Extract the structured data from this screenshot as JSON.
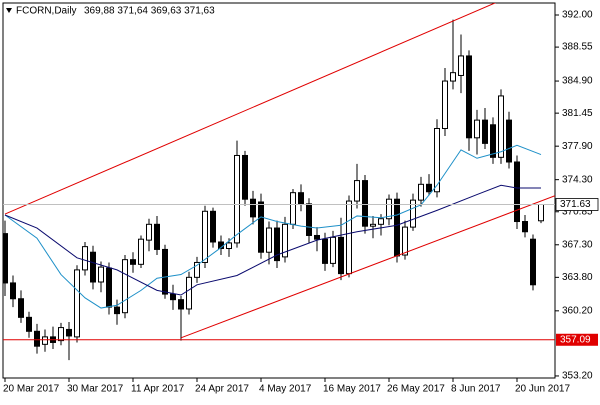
{
  "chart_data": {
    "type": "candlestick",
    "title": "FCORN,Daily",
    "subtitle": "369,88 371,64 369,63 371,63",
    "categories": [
      "20 Mar 2017",
      null,
      null,
      null,
      null,
      null,
      null,
      null,
      "30 Mar 2017",
      null,
      null,
      null,
      null,
      null,
      null,
      null,
      "11 Apr 2017",
      null,
      null,
      null,
      null,
      null,
      null,
      null,
      "24 Apr 2017",
      null,
      null,
      null,
      null,
      null,
      null,
      null,
      "4 May 2017",
      null,
      null,
      null,
      null,
      null,
      null,
      null,
      "16 May 2017",
      null,
      null,
      null,
      null,
      null,
      null,
      null,
      "26 May 2017",
      null,
      null,
      null,
      null,
      null,
      null,
      null,
      "8 Jun 2017",
      null,
      null,
      null,
      null,
      null,
      null,
      null,
      "20 Jun 2017",
      null,
      null,
      null
    ],
    "open": [
      368.5,
      363.2,
      361.5,
      359.5,
      358.0,
      356.6,
      357.4,
      357.0,
      358.2,
      357.4,
      364.6,
      366.5,
      363.3,
      364.8,
      360.6,
      360.0,
      365.7,
      365.2,
      367.8,
      369.5,
      366.8,
      362.0,
      361.4,
      360.4,
      363.8,
      365.4,
      370.9,
      367.6,
      366.9,
      367.5,
      376.9,
      372.2,
      371.9,
      366.5,
      369.1,
      366.0,
      369.5,
      372.9,
      371.7,
      368.3,
      367.9,
      365.3,
      368.1,
      364.2,
      372.0,
      374.2,
      369.3,
      369.5,
      370.1,
      372.2,
      366.2,
      369.2,
      372.1,
      373.8,
      373.0,
      379.8,
      384.9,
      385.5,
      387.6,
      378.8,
      380.7,
      380.2,
      376.7,
      380.7,
      376.2,
      369.8,
      367.9,
      369.88
    ],
    "high": [
      369.9,
      364.0,
      362.4,
      360.1,
      358.8,
      358.2,
      358.5,
      358.9,
      359.0,
      365.1,
      367.6,
      367.2,
      365.5,
      365.4,
      361.4,
      366.2,
      366.5,
      368.3,
      370.1,
      370.4,
      367.3,
      363.0,
      361.8,
      364.4,
      366.0,
      371.5,
      371.3,
      368.3,
      368.0,
      378.5,
      377.4,
      373.1,
      372.8,
      369.8,
      369.9,
      370.3,
      373.3,
      373.8,
      372.3,
      369.2,
      368.6,
      368.8,
      370.2,
      372.6,
      376.0,
      374.8,
      370.4,
      370.6,
      372.7,
      372.9,
      369.9,
      372.8,
      374.6,
      374.9,
      380.8,
      386.3,
      391.5,
      389.9,
      388.2,
      381.8,
      382.0,
      381.0,
      384.0,
      381.6,
      376.9,
      370.5,
      368.4,
      371.64
    ],
    "low": [
      361.8,
      360.6,
      358.9,
      357.3,
      355.6,
      355.8,
      356.1,
      356.5,
      354.9,
      356.8,
      364.0,
      362.5,
      362.2,
      359.8,
      358.7,
      359.4,
      364.3,
      364.8,
      366.6,
      366.2,
      361.5,
      360.3,
      357.0,
      359.8,
      363.2,
      364.8,
      367.0,
      366.2,
      366.0,
      367.0,
      371.5,
      369.5,
      365.8,
      365.2,
      364.8,
      365.4,
      369.0,
      370.9,
      367.5,
      366.6,
      364.5,
      364.9,
      363.5,
      363.8,
      371.2,
      368.5,
      368.0,
      368.3,
      369.4,
      365.4,
      365.7,
      368.8,
      371.4,
      372.6,
      372.4,
      379.0,
      384.0,
      383.6,
      377.4,
      377.0,
      377.6,
      376.0,
      376.0,
      375.5,
      369.0,
      368.1,
      362.4,
      369.63
    ],
    "close": [
      363.2,
      361.5,
      359.5,
      358.0,
      356.4,
      357.4,
      356.8,
      358.4,
      357.5,
      364.6,
      367.1,
      363.3,
      364.9,
      360.6,
      359.9,
      365.7,
      365.2,
      367.9,
      369.5,
      366.8,
      362.0,
      361.4,
      360.4,
      363.8,
      365.4,
      370.9,
      367.6,
      366.9,
      367.5,
      376.9,
      372.2,
      370.3,
      366.5,
      369.1,
      365.6,
      369.5,
      372.9,
      371.7,
      368.3,
      367.9,
      365.3,
      368.1,
      364.2,
      372.0,
      374.2,
      369.3,
      369.5,
      370.1,
      372.2,
      366.1,
      369.2,
      372.1,
      373.8,
      373.0,
      379.8,
      384.9,
      385.8,
      387.6,
      378.8,
      380.7,
      378.2,
      376.7,
      383.3,
      376.2,
      369.8,
      368.7,
      363.0,
      371.63
    ],
    "up_color": "#ffffff",
    "down_color": "#000000",
    "ylim": [
      352.98,
      393.29
    ],
    "yticks": [
      {
        "value": 392.0,
        "label": "392.00"
      },
      388.55,
      {
        "value": 384.9,
        "label": "384.90"
      },
      381.45,
      {
        "value": 377.9,
        "label": "377.90"
      },
      {
        "value": 374.3,
        "label": "374.30"
      },
      370.85,
      {
        "value": 367.3,
        "label": "367.30"
      },
      {
        "value": 363.8,
        "label": "363.80"
      },
      {
        "value": 360.2,
        "label": "360.20"
      },
      {
        "value": 353.2,
        "label": "353.20"
      }
    ],
    "moving_averages": [
      {
        "color": "#1e90c8",
        "x": [
          0,
          4,
          7,
          10,
          12,
          14,
          17,
          19,
          22,
          24,
          27,
          29,
          32,
          34,
          37,
          39,
          42,
          44,
          47,
          49,
          52,
          54,
          57,
          59,
          62,
          64,
          67
        ],
        "values": [
          370.5,
          368.0,
          364.1,
          361.6,
          360.5,
          360.8,
          362.4,
          363.7,
          364.1,
          365.1,
          367.0,
          368.4,
          370.3,
          369.8,
          369.3,
          369.1,
          369.4,
          370.4,
          370.2,
          370.5,
          371.6,
          373.7,
          377.5,
          376.6,
          377.3,
          378.0,
          377.0
        ]
      },
      {
        "color": "#0a0a6e",
        "x": [
          0,
          4,
          9,
          14,
          19,
          22,
          24,
          29,
          34,
          39,
          44,
          49,
          54,
          59,
          62,
          64,
          67
        ],
        "values": [
          370.5,
          369.1,
          365.9,
          364.6,
          362.4,
          361.9,
          363.0,
          364.0,
          366.2,
          367.8,
          368.7,
          369.4,
          371.0,
          372.7,
          373.7,
          373.4,
          373.4
        ]
      }
    ],
    "trendlines": [
      {
        "color": "#e00000",
        "x": [
          0,
          61
        ],
        "values": [
          370.6,
          393.2
        ]
      },
      {
        "color": "#e00000",
        "x": [
          22,
          67
        ],
        "values": [
          357.3,
          372.0
        ]
      }
    ],
    "hlines": [
      {
        "value": 357.09,
        "color": "#e00000"
      }
    ]
  }
}
